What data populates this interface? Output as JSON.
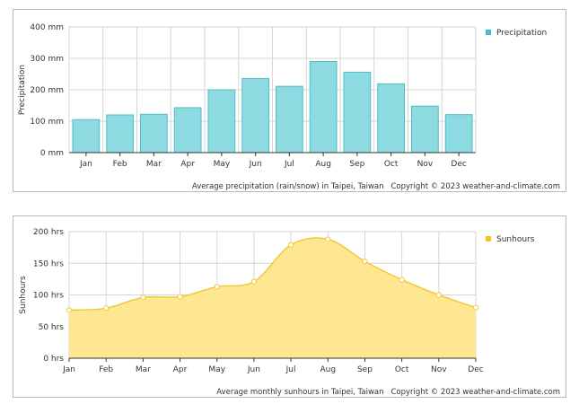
{
  "chart_data": [
    {
      "type": "bar",
      "categories": [
        "Jan",
        "Feb",
        "Mar",
        "Apr",
        "May",
        "Jun",
        "Jul",
        "Aug",
        "Sep",
        "Oct",
        "Nov",
        "Dec"
      ],
      "series": [
        {
          "name": "Precipitation",
          "values": [
            105,
            120,
            122,
            143,
            200,
            236,
            211,
            290,
            256,
            219,
            148,
            121
          ]
        }
      ],
      "ylabel": "Precipitation",
      "ylim": [
        0,
        400
      ],
      "yticks": [
        "0 mm",
        "100 mm",
        "200 mm",
        "300 mm",
        "400 mm"
      ],
      "legend_position": "top-right",
      "grid": true,
      "colors": {
        "fill": "#8ddbe0",
        "stroke": "#4bbfc8",
        "legend": "#3fbfc6"
      },
      "caption": "Average precipitation (rain/snow) in Taipei, Taiwan",
      "copyright": "Copyright © 2023  weather-and-climate.com"
    },
    {
      "type": "area",
      "categories": [
        "Jan",
        "Feb",
        "Mar",
        "Apr",
        "May",
        "Jun",
        "Jul",
        "Aug",
        "Sep",
        "Oct",
        "Nov",
        "Dec"
      ],
      "series": [
        {
          "name": "Sunhours",
          "values": [
            76,
            79,
            96,
            97,
            113,
            121,
            179,
            188,
            153,
            124,
            100,
            80
          ]
        }
      ],
      "ylabel": "Sunhours",
      "ylim": [
        0,
        200
      ],
      "yticks": [
        "0 hrs",
        "50 hrs",
        "100 hrs",
        "150 hrs",
        "200 hrs"
      ],
      "legend_position": "top-right",
      "grid": true,
      "colors": {
        "fill": "#ffe58a",
        "stroke": "#f0c93a",
        "point": "#ffffff",
        "legend": "#f5c518"
      },
      "caption": "Average monthly sunhours in Taipei, Taiwan",
      "copyright": "Copyright © 2023  weather-and-climate.com"
    }
  ]
}
